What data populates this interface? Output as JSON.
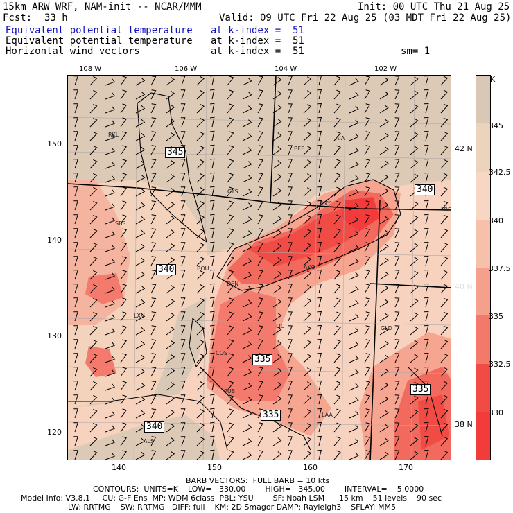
{
  "header": {
    "model": "15km ARW WRF, NAM-init -- NCAR/MMM",
    "init": "Init: 00 UTC Thu 21 Aug 25",
    "fcst_label": "Fcst:",
    "fcst": "33 h",
    "valid": "Valid: 09 UTC Fri 22 Aug 25 (03 MDT Fri 22 Aug 25)",
    "field1": "Equivalent potential temperature",
    "field1_level": "at k-index =  51",
    "field2": "Equivalent potential temperature",
    "field2_level": "at k-index =  51",
    "field3": "Horizontal wind vectors",
    "field3_level": "at k-index =  51",
    "sm": "sm= 1"
  },
  "axes": {
    "lon_top": [
      "108 W",
      "106 W",
      "104 W",
      "102 W"
    ],
    "lat_right": [
      "42 N",
      "40 N",
      "38 N"
    ],
    "x_bottom": [
      "140",
      "150",
      "160",
      "170"
    ],
    "y_left": [
      "150",
      "140",
      "130",
      "120"
    ]
  },
  "cities": [
    "RKL",
    "BFF",
    "AIA",
    "CYS",
    "SNY",
    "LBF",
    "SBS",
    "BOU",
    "AKO",
    "DEN",
    "LXV",
    "LIC",
    "GLD",
    "COS",
    "PUB",
    "LAA",
    "ALS"
  ],
  "contour_labels": [
    "345",
    "340",
    "340",
    "340",
    "335",
    "335",
    "335"
  ],
  "colorbar": {
    "unit": "K",
    "labels": [
      "345",
      "342.5",
      "340",
      "337.5",
      "335",
      "332.5",
      "330"
    ],
    "colors": [
      "#d9c8b6",
      "#ecd3bb",
      "#f7d7c3",
      "#f7c0aa",
      "#f5a08c",
      "#f3796b",
      "#f04b45",
      "#f23c3c"
    ]
  },
  "footer": {
    "barb": "BARB VECTORS:  FULL BARB = 10 kts",
    "contours": "CONTOURS:  UNITS=K    LOW=   330.00        HIGH=   345.00        INTERVAL=    5.0000",
    "model_info": "Model Info: V3.8.1     CU: G-F Ens  MP: WDM 6class  PBL: YSU        SF: Noah LSM      15 km    51 levels    90 sec",
    "model_info2": "LW: RRTMG    SW: RRTMG   DIFF: full    KM: 2D Smagor DAMP: Rayleigh3    SFLAY: MM5"
  }
}
